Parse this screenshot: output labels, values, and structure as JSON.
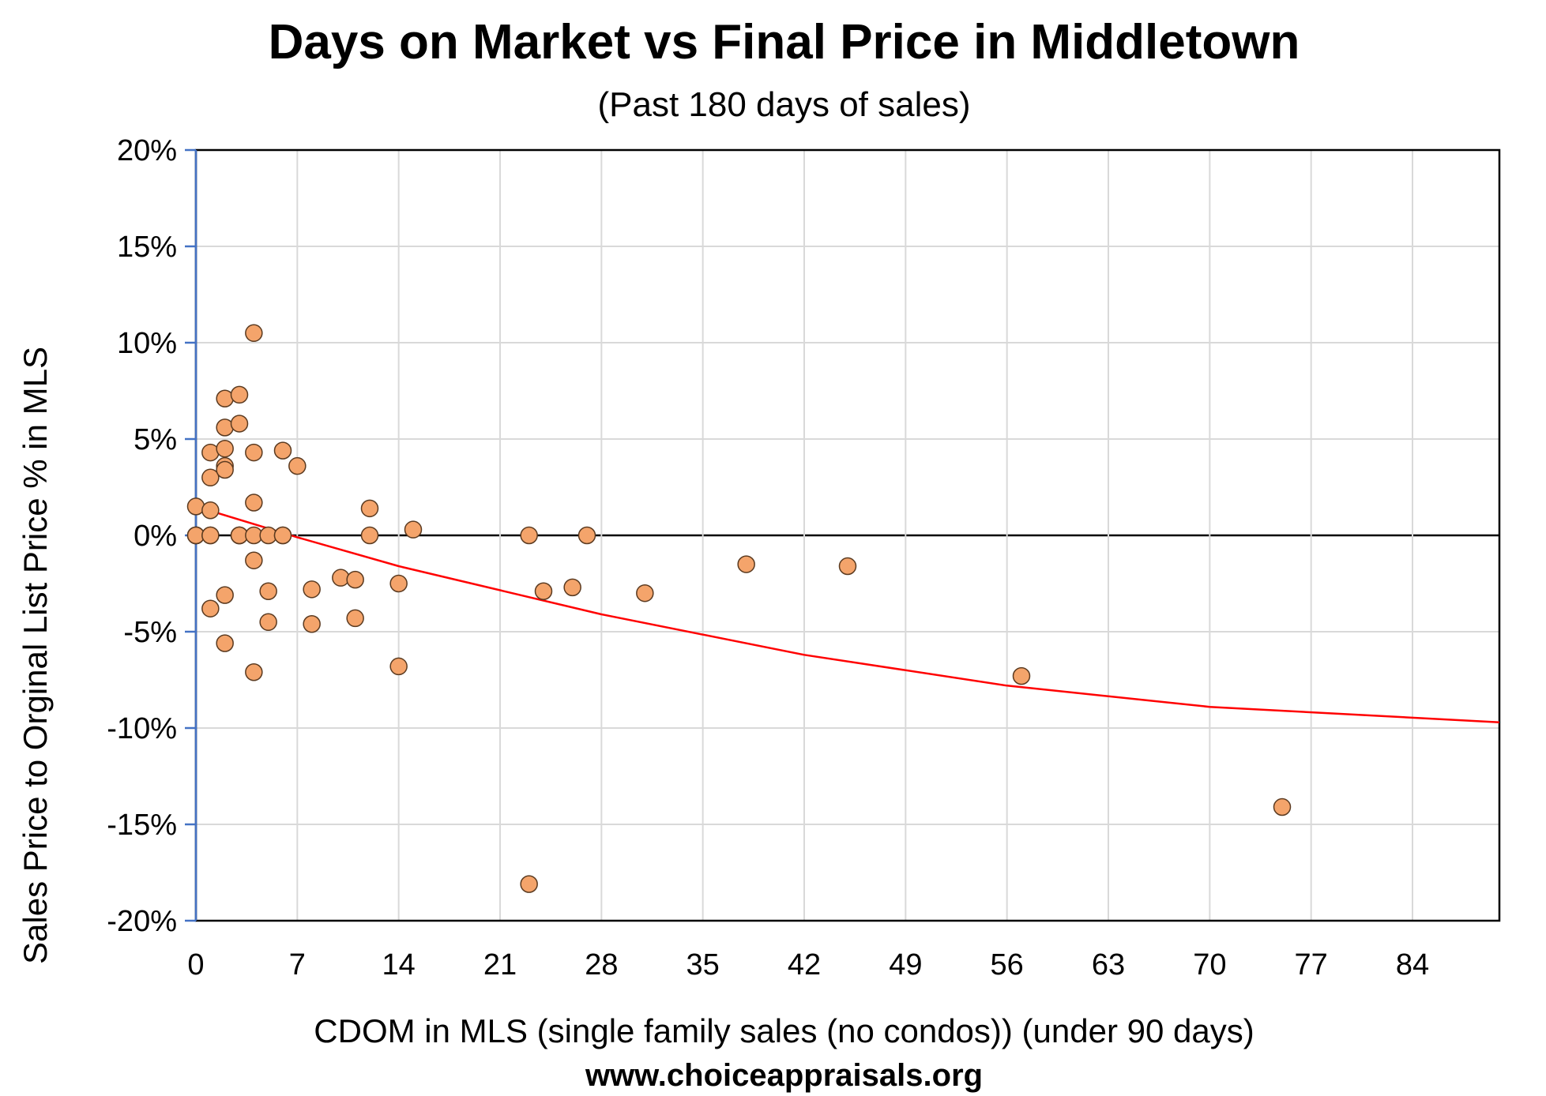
{
  "chart_data": {
    "type": "scatter",
    "title": "Days on Market vs Final Price in Middletown",
    "subtitle": "(Past 180 days of sales)",
    "xlabel": "CDOM in MLS (single family sales (no condos)) (under 90 days)",
    "ylabel": "Sales Price to Orginal List Price % in MLS",
    "footer": "www.choiceappraisals.org",
    "xlim": [
      0,
      90
    ],
    "ylim": [
      -20,
      20
    ],
    "x_ticks": [
      0,
      7,
      14,
      21,
      28,
      35,
      42,
      49,
      56,
      63,
      70,
      77,
      84
    ],
    "y_ticks": [
      20,
      15,
      10,
      5,
      0,
      -5,
      -10,
      -15,
      -20
    ],
    "y_tick_labels": [
      "20%",
      "15%",
      "10%",
      "5%",
      "0%",
      "-5%",
      "-10%",
      "-15%",
      "-20%"
    ],
    "grid": true,
    "colors": {
      "marker": "#f4a46b",
      "marker_edge": "#5a3a20",
      "trend": "#ff0000",
      "zero_line": "#000000",
      "y_axis": "#4472c4",
      "grid": "#d9d9d9"
    },
    "points": [
      [
        0,
        1.5
      ],
      [
        0,
        0
      ],
      [
        0,
        0
      ],
      [
        0,
        0
      ],
      [
        1,
        4.3
      ],
      [
        1,
        3.0
      ],
      [
        1,
        1.3
      ],
      [
        1,
        0
      ],
      [
        1,
        0
      ],
      [
        1,
        -3.8
      ],
      [
        2,
        7.1
      ],
      [
        2,
        5.6
      ],
      [
        2,
        4.5
      ],
      [
        2,
        3.6
      ],
      [
        2,
        3.4
      ],
      [
        2,
        -3.1
      ],
      [
        2,
        -5.6
      ],
      [
        3,
        7.3
      ],
      [
        3,
        5.8
      ],
      [
        3,
        0
      ],
      [
        3,
        0
      ],
      [
        3,
        0
      ],
      [
        4,
        10.5
      ],
      [
        4,
        4.3
      ],
      [
        4,
        1.7
      ],
      [
        4,
        0
      ],
      [
        4,
        -1.3
      ],
      [
        4,
        -7.1
      ],
      [
        5,
        0
      ],
      [
        5,
        -2.9
      ],
      [
        5,
        -4.5
      ],
      [
        6,
        4.4
      ],
      [
        6,
        0
      ],
      [
        6,
        0
      ],
      [
        7,
        3.6
      ],
      [
        8,
        -2.8
      ],
      [
        8,
        -4.6
      ],
      [
        10,
        -2.2
      ],
      [
        11,
        -2.3
      ],
      [
        11,
        -4.3
      ],
      [
        12,
        1.4
      ],
      [
        12,
        0
      ],
      [
        14,
        -2.5
      ],
      [
        14,
        -6.8
      ],
      [
        15,
        0.3
      ],
      [
        23,
        0
      ],
      [
        23,
        -18.1
      ],
      [
        24,
        -2.9
      ],
      [
        26,
        -2.7
      ],
      [
        27,
        0
      ],
      [
        31,
        -3.0
      ],
      [
        38,
        -1.5
      ],
      [
        45,
        -1.6
      ],
      [
        57,
        -7.3
      ],
      [
        75,
        -14.1
      ]
    ],
    "trendline": {
      "type": "polynomial-2",
      "points": [
        [
          0,
          1.5
        ],
        [
          7,
          -0.1
        ],
        [
          14,
          -1.6
        ],
        [
          28,
          -4.1
        ],
        [
          42,
          -6.2
        ],
        [
          56,
          -7.8
        ],
        [
          70,
          -8.9
        ],
        [
          90,
          -9.7
        ]
      ]
    }
  }
}
